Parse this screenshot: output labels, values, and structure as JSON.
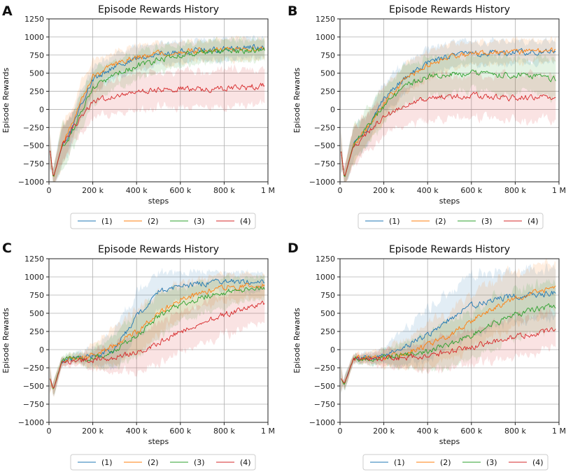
{
  "figure": {
    "panel_letters": [
      "A",
      "B",
      "C",
      "D"
    ]
  },
  "colors": {
    "s1": "#1f77b4",
    "s2": "#ff7f0e",
    "s3": "#2ca02c",
    "s4": "#d62728",
    "grid": "#b0b0b0"
  },
  "chart_data": [
    {
      "type": "line",
      "panel": "A",
      "title": "Episode Rewards History",
      "xlabel": "steps",
      "ylabel": "Episode Rewards",
      "xlim": [
        0,
        1000000
      ],
      "ylim": [
        -1000,
        1250
      ],
      "x_ticks": [
        0,
        200000,
        400000,
        600000,
        800000,
        1000000
      ],
      "x_tick_labels": [
        "0",
        "200 k",
        "400 k",
        "600 k",
        "800 k",
        "1 M"
      ],
      "y_ticks": [
        -1000,
        -750,
        -500,
        -250,
        0,
        250,
        500,
        750,
        1000,
        1250
      ],
      "y_tick_labels": [
        "−1000",
        "−750",
        "−500",
        "−250",
        "0",
        "250",
        "500",
        "750",
        "1000",
        "1250"
      ],
      "legend": [
        "(1)",
        "(2)",
        "(3)",
        "(4)"
      ],
      "x": [
        0,
        20000,
        60000,
        100000,
        150000,
        200000,
        300000,
        400000,
        500000,
        600000,
        700000,
        800000,
        900000,
        1000000
      ],
      "series": [
        {
          "name": "(1)",
          "values": [
            -450,
            -950,
            -500,
            -300,
            100,
            400,
            600,
            700,
            760,
            800,
            820,
            830,
            850,
            860
          ],
          "band": [
            -420,
            140,
            300,
            200,
            200,
            180,
            170,
            160,
            150,
            150,
            150,
            150,
            140,
            130
          ]
        },
        {
          "name": "(2)",
          "values": [
            -450,
            -950,
            -480,
            -250,
            150,
            450,
            620,
            720,
            770,
            800,
            810,
            820,
            830,
            850
          ],
          "band": [
            -420,
            140,
            320,
            220,
            220,
            200,
            170,
            160,
            150,
            150,
            150,
            150,
            140,
            140
          ]
        },
        {
          "name": "(3)",
          "values": [
            -450,
            -950,
            -500,
            -350,
            0,
            300,
            480,
            600,
            680,
            740,
            780,
            800,
            800,
            840
          ],
          "band": [
            -420,
            140,
            300,
            250,
            250,
            220,
            200,
            180,
            170,
            150,
            150,
            150,
            150,
            140
          ]
        },
        {
          "name": "(4)",
          "values": [
            -450,
            -950,
            -500,
            -300,
            -100,
            100,
            180,
            250,
            270,
            280,
            270,
            290,
            300,
            340
          ],
          "band": [
            -420,
            140,
            250,
            250,
            250,
            230,
            250,
            250,
            250,
            250,
            250,
            250,
            250,
            250
          ]
        }
      ]
    },
    {
      "type": "line",
      "panel": "B",
      "title": "Episode Rewards History",
      "xlabel": "steps",
      "ylabel": "Episode Rewards",
      "xlim": [
        0,
        1000000
      ],
      "ylim": [
        -1000,
        1250
      ],
      "x_ticks": [
        0,
        200000,
        400000,
        600000,
        800000,
        1000000
      ],
      "x_tick_labels": [
        "0",
        "200 k",
        "400 k",
        "600 k",
        "800 k",
        "1 M"
      ],
      "y_ticks": [
        -1000,
        -750,
        -500,
        -250,
        0,
        250,
        500,
        750,
        1000,
        1250
      ],
      "y_tick_labels": [
        "−1000",
        "−750",
        "−500",
        "−250",
        "0",
        "250",
        "500",
        "750",
        "1000",
        "1250"
      ],
      "legend": [
        "(1)",
        "(2)",
        "(3)",
        "(4)"
      ],
      "x": [
        0,
        20000,
        60000,
        100000,
        150000,
        200000,
        300000,
        400000,
        500000,
        600000,
        700000,
        800000,
        900000,
        1000000
      ],
      "series": [
        {
          "name": "(1)",
          "values": [
            -450,
            -950,
            -500,
            -350,
            -150,
            150,
            450,
            650,
            740,
            770,
            780,
            790,
            800,
            820
          ],
          "band": [
            -420,
            140,
            250,
            220,
            220,
            220,
            200,
            180,
            170,
            160,
            160,
            160,
            150,
            150
          ]
        },
        {
          "name": "(2)",
          "values": [
            -450,
            -950,
            -500,
            -350,
            -150,
            100,
            420,
            620,
            720,
            760,
            780,
            790,
            800,
            800
          ],
          "band": [
            -420,
            140,
            250,
            220,
            220,
            220,
            200,
            180,
            170,
            160,
            160,
            160,
            150,
            150
          ]
        },
        {
          "name": "(3)",
          "values": [
            -450,
            -950,
            -500,
            -350,
            -150,
            50,
            330,
            450,
            490,
            500,
            480,
            470,
            460,
            410
          ],
          "band": [
            -420,
            140,
            250,
            250,
            250,
            250,
            250,
            260,
            250,
            250,
            250,
            250,
            250,
            250
          ]
        },
        {
          "name": "(4)",
          "values": [
            -450,
            -950,
            -520,
            -400,
            -250,
            -100,
            50,
            150,
            180,
            190,
            170,
            160,
            170,
            160
          ],
          "band": [
            -420,
            140,
            260,
            260,
            260,
            260,
            280,
            300,
            300,
            300,
            300,
            300,
            300,
            300
          ]
        }
      ]
    },
    {
      "type": "line",
      "panel": "C",
      "title": "Episode Rewards History",
      "xlabel": "steps",
      "ylabel": "Episode Rewards",
      "xlim": [
        0,
        1000000
      ],
      "ylim": [
        -1000,
        1250
      ],
      "x_ticks": [
        0,
        200000,
        400000,
        600000,
        800000,
        1000000
      ],
      "x_tick_labels": [
        "0",
        "200 k",
        "400 k",
        "600 k",
        "800 k",
        "1 M"
      ],
      "y_ticks": [
        -1000,
        -750,
        -500,
        -250,
        0,
        250,
        500,
        750,
        1000,
        1250
      ],
      "y_tick_labels": [
        "−1000",
        "−750",
        "−500",
        "−250",
        "0",
        "250",
        "500",
        "750",
        "1000",
        "1250"
      ],
      "legend": [
        "(1)",
        "(2)",
        "(3)",
        "(4)"
      ],
      "x": [
        0,
        20000,
        60000,
        100000,
        150000,
        200000,
        300000,
        400000,
        500000,
        600000,
        700000,
        800000,
        900000,
        1000000
      ],
      "series": [
        {
          "name": "(1)",
          "values": [
            -350,
            -550,
            -150,
            -130,
            -120,
            -100,
            0,
            450,
            800,
            880,
            910,
            930,
            940,
            950
          ],
          "band": [
            -300,
            120,
            60,
            60,
            80,
            120,
            250,
            350,
            250,
            180,
            150,
            140,
            130,
            120
          ]
        },
        {
          "name": "(2)",
          "values": [
            -350,
            -550,
            -150,
            -130,
            -110,
            -80,
            50,
            250,
            500,
            680,
            790,
            850,
            880,
            870
          ],
          "band": [
            -300,
            120,
            60,
            60,
            80,
            150,
            250,
            300,
            300,
            250,
            200,
            180,
            160,
            150
          ]
        },
        {
          "name": "(3)",
          "values": [
            -350,
            -550,
            -150,
            -140,
            -130,
            -110,
            -20,
            200,
            450,
            620,
            720,
            790,
            830,
            850
          ],
          "band": [
            -300,
            120,
            60,
            60,
            80,
            120,
            220,
            300,
            300,
            250,
            220,
            200,
            180,
            170
          ]
        },
        {
          "name": "(4)",
          "values": [
            -350,
            -550,
            -160,
            -150,
            -150,
            -140,
            -100,
            -50,
            100,
            250,
            380,
            480,
            560,
            650
          ],
          "band": [
            -300,
            120,
            60,
            60,
            80,
            120,
            200,
            250,
            280,
            300,
            300,
            280,
            260,
            250
          ]
        }
      ]
    },
    {
      "type": "line",
      "panel": "D",
      "title": "Episode Rewards History",
      "xlabel": "steps",
      "ylabel": "Episode Rewards",
      "xlim": [
        0,
        1000000
      ],
      "ylim": [
        -1000,
        1250
      ],
      "x_ticks": [
        0,
        200000,
        400000,
        600000,
        800000,
        1000000
      ],
      "x_tick_labels": [
        "0",
        "200 k",
        "400 k",
        "600 k",
        "800 k",
        "1 M"
      ],
      "y_ticks": [
        -1000,
        -750,
        -500,
        -250,
        0,
        250,
        500,
        750,
        1000,
        1250
      ],
      "y_tick_labels": [
        "−1000",
        "−750",
        "−500",
        "−250",
        "0",
        "250",
        "500",
        "750",
        "1000",
        "1250"
      ],
      "legend": [
        "(1)",
        "(2)",
        "(3)",
        "(4)"
      ],
      "x": [
        0,
        20000,
        60000,
        100000,
        150000,
        200000,
        300000,
        400000,
        500000,
        600000,
        700000,
        800000,
        900000,
        1000000
      ],
      "series": [
        {
          "name": "(1)",
          "values": [
            -380,
            -480,
            -130,
            -120,
            -100,
            -80,
            50,
            200,
            420,
            600,
            690,
            740,
            760,
            780
          ],
          "band": [
            -300,
            100,
            60,
            60,
            80,
            120,
            250,
            350,
            400,
            400,
            380,
            360,
            350,
            340
          ]
        },
        {
          "name": "(2)",
          "values": [
            -380,
            -480,
            -130,
            -120,
            -110,
            -100,
            -50,
            50,
            200,
            400,
            560,
            700,
            800,
            850
          ],
          "band": [
            -300,
            100,
            60,
            60,
            80,
            120,
            200,
            280,
            350,
            380,
            380,
            370,
            350,
            340
          ]
        },
        {
          "name": "(3)",
          "values": [
            -380,
            -480,
            -130,
            -125,
            -120,
            -110,
            -80,
            -30,
            80,
            200,
            350,
            480,
            560,
            600
          ],
          "band": [
            -300,
            100,
            60,
            60,
            80,
            100,
            180,
            250,
            300,
            330,
            350,
            350,
            340,
            330
          ]
        },
        {
          "name": "(4)",
          "values": [
            -380,
            -480,
            -140,
            -135,
            -130,
            -125,
            -110,
            -80,
            -30,
            30,
            110,
            180,
            230,
            280
          ],
          "band": [
            -300,
            100,
            60,
            60,
            80,
            100,
            150,
            200,
            230,
            250,
            260,
            260,
            260,
            250
          ]
        }
      ]
    }
  ]
}
